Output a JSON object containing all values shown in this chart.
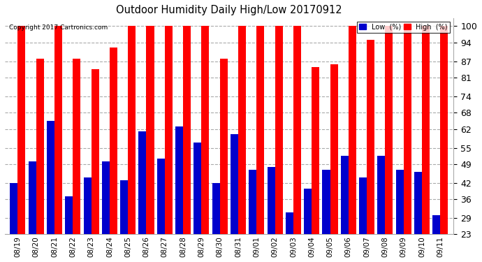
{
  "title": "Outdoor Humidity Daily High/Low 20170912",
  "copyright": "Copyright 2017 Cartronics.com",
  "categories": [
    "08/19",
    "08/20",
    "08/21",
    "08/22",
    "08/23",
    "08/24",
    "08/25",
    "08/26",
    "08/27",
    "08/28",
    "08/29",
    "08/30",
    "08/31",
    "09/01",
    "09/02",
    "09/03",
    "09/04",
    "09/05",
    "09/06",
    "09/07",
    "09/08",
    "09/09",
    "09/10",
    "09/11"
  ],
  "high_values": [
    100,
    88,
    100,
    88,
    84,
    92,
    100,
    100,
    100,
    100,
    100,
    88,
    100,
    100,
    100,
    100,
    85,
    86,
    100,
    95,
    100,
    100,
    100,
    100
  ],
  "low_values": [
    42,
    50,
    65,
    37,
    44,
    50,
    43,
    61,
    51,
    63,
    57,
    42,
    60,
    47,
    48,
    31,
    40,
    47,
    52,
    44,
    52,
    47,
    46,
    30
  ],
  "high_color": "#ff0000",
  "low_color": "#0000cc",
  "bg_color": "#ffffff",
  "ylim_min": 23,
  "ylim_max": 103,
  "yticks": [
    23,
    29,
    36,
    42,
    49,
    55,
    62,
    68,
    74,
    81,
    87,
    94,
    100
  ],
  "bar_width": 0.42,
  "legend_low_label": "Low  (%)",
  "legend_high_label": "High  (%)"
}
